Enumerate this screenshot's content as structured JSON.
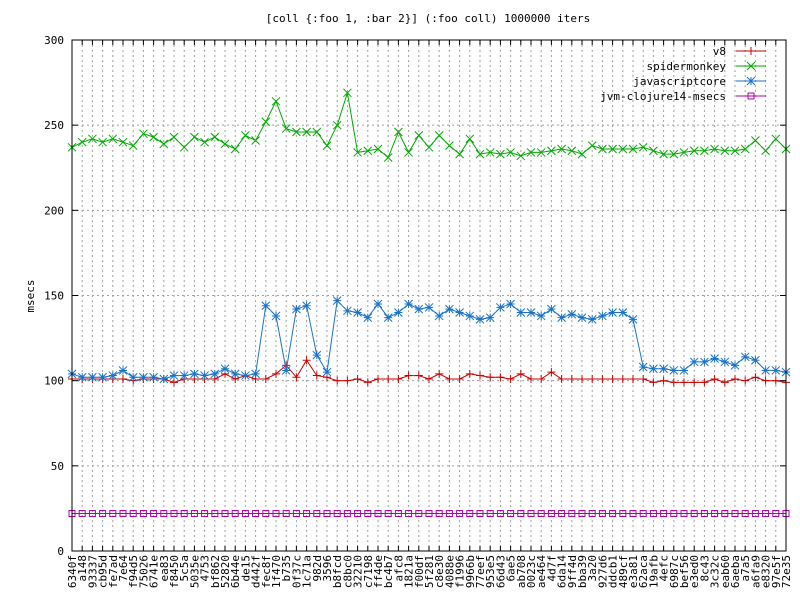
{
  "chart_data": {
    "type": "line",
    "title": "[coll {:foo 1, :bar 2}] (:foo coll) 1000000 iters",
    "xlabel": "",
    "ylabel": "msecs",
    "ylim": [
      0,
      300
    ],
    "yticks": [
      0,
      50,
      100,
      150,
      200,
      250,
      300
    ],
    "grid": true,
    "legend_position": "top-right",
    "categories": [
      "6340f",
      "a148",
      "93337",
      "cb95d",
      "fe7ad",
      "7e64",
      "f94d5",
      "75026",
      "6741e",
      "ea83",
      "f8450",
      "5c5a",
      "5035e",
      "4753",
      "bf862",
      "52820",
      "6b44e",
      "de15",
      "d442f",
      "fec8f",
      "1f470",
      "b735",
      "0f37c",
      "1c71a",
      "982d",
      "3596",
      "b8fcd",
      "c8bc0",
      "32210",
      "c7198",
      "ff4de",
      "bc4b7",
      "afc8",
      "1821a",
      "f00df",
      "5f281",
      "c8e30",
      "4088e",
      "f1996",
      "9966b",
      "77eef",
      "953e5",
      "66d43",
      "6ae5",
      "ab708",
      "0023c",
      "ae464",
      "4d7f",
      "6da14",
      "9ff4d",
      "bba39",
      "3a20",
      "927d6",
      "ddcb1",
      "489cf",
      "e3a81",
      "62aca",
      "19afb",
      "4efc",
      "6987c",
      "bef56",
      "e3ed0",
      "8c43",
      "3c32c",
      "eab60",
      "6aeba",
      "a7a5",
      "a6fa9",
      "e8320",
      "97e5f",
      "72e35"
    ],
    "series": [
      {
        "name": "v8",
        "color": "#cc0000",
        "marker": "plus",
        "values": [
          101,
          101,
          101,
          101,
          101,
          101,
          100,
          101,
          101,
          101,
          99,
          101,
          101,
          101,
          101,
          104,
          101,
          103,
          101,
          101,
          104,
          109,
          102,
          112,
          103,
          102,
          100,
          100,
          101,
          99,
          101,
          101,
          101,
          103,
          103,
          101,
          104,
          101,
          101,
          104,
          103,
          102,
          102,
          101,
          104,
          101,
          101,
          105,
          101,
          101,
          101,
          101,
          101,
          101,
          101,
          101,
          101,
          99,
          100,
          99,
          99,
          99,
          99,
          101,
          99,
          101,
          100,
          102,
          100,
          100,
          99
        ]
      },
      {
        "name": "spidermonkey",
        "color": "#00aa00",
        "marker": "x",
        "values": [
          237,
          240,
          242,
          240,
          242,
          240,
          238,
          245,
          243,
          239,
          243,
          237,
          243,
          240,
          243,
          239,
          236,
          244,
          241,
          252,
          264,
          248,
          246,
          246,
          246,
          238,
          250,
          269,
          234,
          235,
          236,
          231,
          246,
          234,
          244,
          237,
          244,
          238,
          233,
          242,
          233,
          234,
          233,
          234,
          232,
          234,
          234,
          235,
          236,
          235,
          233,
          238,
          236,
          236,
          236,
          236,
          237,
          235,
          233,
          233,
          234,
          235,
          235,
          236,
          235,
          235,
          236,
          241,
          235,
          242,
          236
        ]
      },
      {
        "name": "javascriptcore",
        "color": "#1a73c8",
        "marker": "star",
        "values": [
          104,
          102,
          102,
          102,
          103,
          106,
          102,
          102,
          102,
          101,
          103,
          103,
          104,
          103,
          104,
          107,
          104,
          103,
          104,
          144,
          138,
          106,
          142,
          144,
          115,
          105,
          147,
          141,
          140,
          137,
          145,
          137,
          140,
          145,
          142,
          143,
          138,
          142,
          140,
          138,
          136,
          137,
          143,
          145,
          140,
          140,
          138,
          142,
          137,
          139,
          137,
          136,
          138,
          140,
          140,
          136,
          108,
          107,
          107,
          106,
          106,
          111,
          111,
          113,
          111,
          109,
          114,
          112,
          106,
          106,
          105
        ]
      },
      {
        "name": "jvm-clojure14-msecs",
        "color": "#aa00aa",
        "marker": "square",
        "values": [
          22,
          22,
          22,
          22,
          22,
          22,
          22,
          22,
          22,
          22,
          22,
          22,
          22,
          22,
          22,
          22,
          22,
          22,
          22,
          22,
          22,
          22,
          22,
          22,
          22,
          22,
          22,
          22,
          22,
          22,
          22,
          22,
          22,
          22,
          22,
          22,
          22,
          22,
          22,
          22,
          22,
          22,
          22,
          22,
          22,
          22,
          22,
          22,
          22,
          22,
          22,
          22,
          22,
          22,
          22,
          22,
          22,
          22,
          22,
          22,
          22,
          22,
          22,
          22,
          22,
          22,
          22,
          22,
          22,
          22,
          22
        ]
      }
    ]
  }
}
